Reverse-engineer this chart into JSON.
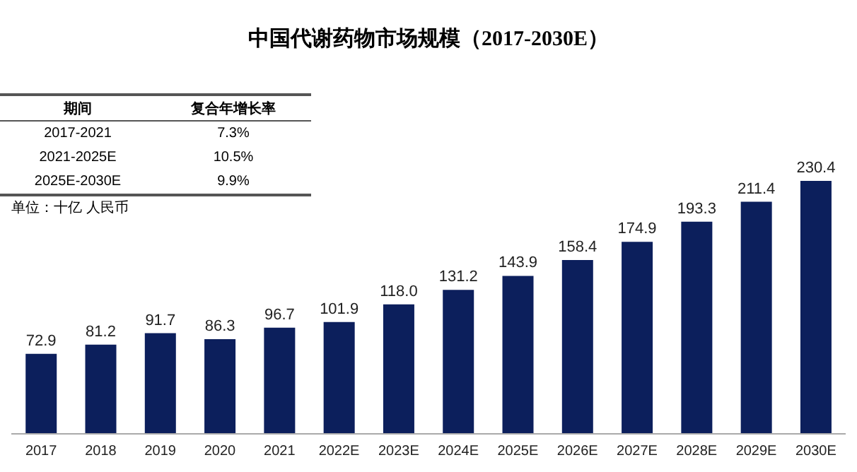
{
  "chart_data": {
    "type": "bar",
    "title": "中国代谢药物市场规模（2017-2030E）",
    "categories": [
      "2017",
      "2018",
      "2019",
      "2020",
      "2021",
      "2022E",
      "2023E",
      "2024E",
      "2025E",
      "2026E",
      "2027E",
      "2028E",
      "2029E",
      "2030E"
    ],
    "values": [
      72.9,
      81.2,
      91.7,
      86.3,
      96.7,
      101.9,
      118.0,
      131.2,
      143.9,
      158.4,
      174.9,
      193.3,
      211.4,
      230.4
    ],
    "color": "#0c1f5c",
    "value_labels": [
      "72.9",
      "81.2",
      "91.7",
      "86.3",
      "96.7",
      "101.9",
      "118.0",
      "131.2",
      "143.9",
      "158.4",
      "174.9",
      "193.3",
      "211.4",
      "230.4"
    ],
    "annotations": [
      "期间",
      "复合年增长率",
      "2017-2021",
      "7.3%",
      "2021-2025E",
      "10.5%",
      "2025E-2030E",
      "9.9%",
      "单位：十亿 人民币"
    ]
  }
}
